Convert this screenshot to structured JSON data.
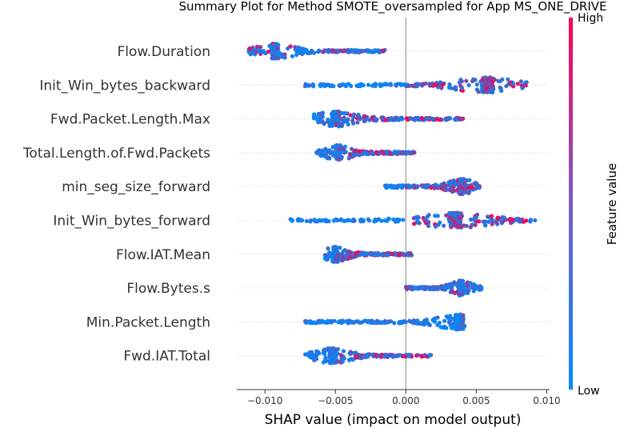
{
  "chart_data": {
    "type": "scatter",
    "title": "Summary Plot for Method SMOTE_oversampled for App MS_ONE_DRIVE",
    "xlabel": "SHAP value (impact on model output)",
    "ylabel": "",
    "xlim": [
      -0.012,
      0.0102
    ],
    "x_ticks": [
      -0.01,
      -0.005,
      0.0,
      0.005,
      0.01
    ],
    "x_tick_labels": [
      "−0.010",
      "−0.005",
      "0.000",
      "0.005",
      "0.010"
    ],
    "grid": "horizontal dotted",
    "zero_line": 0,
    "features": [
      "Flow.Duration",
      "Init_Win_bytes_backward",
      "Fwd.Packet.Length.Max",
      "Total.Length.of.Fwd.Packets",
      "min_seg_size_forward",
      "Init_Win_bytes_forward",
      "Flow.IAT.Mean",
      "Flow.Bytes.s",
      "Min.Packet.Length",
      "Fwd.IAT.Total"
    ],
    "feature_distributions": [
      {
        "feature": "Flow.Duration",
        "range": [
          -0.0112,
          -0.0015
        ],
        "peak": -0.0093,
        "high_value_side": "mixed"
      },
      {
        "feature": "Init_Win_bytes_backward",
        "range": [
          -0.0072,
          0.0088
        ],
        "peak": 0.0058,
        "high_value_side": "positive"
      },
      {
        "feature": "Fwd.Packet.Length.Max",
        "range": [
          -0.0066,
          0.0042
        ],
        "peak": -0.005,
        "high_value_side": "negative"
      },
      {
        "feature": "Total.Length.of.Fwd.Packets",
        "range": [
          -0.0064,
          0.0006
        ],
        "peak": -0.0048,
        "high_value_side": "negative"
      },
      {
        "feature": "min_seg_size_forward",
        "range": [
          -0.0015,
          0.0053
        ],
        "peak": 0.004,
        "high_value_side": "positive"
      },
      {
        "feature": "Init_Win_bytes_forward",
        "range": [
          -0.0082,
          0.0092
        ],
        "peak": 0.0035,
        "high_value_side": "positive"
      },
      {
        "feature": "Flow.IAT.Mean",
        "range": [
          -0.0058,
          0.0004
        ],
        "peak": -0.005,
        "high_value_side": "negative"
      },
      {
        "feature": "Flow.Bytes.s",
        "range": [
          0.0,
          0.0054
        ],
        "peak": 0.0039,
        "high_value_side": "mixed"
      },
      {
        "feature": "Min.Packet.Length",
        "range": [
          -0.0073,
          0.0042
        ],
        "peak": 0.0038,
        "high_value_side": "negative"
      },
      {
        "feature": "Fwd.IAT.Total",
        "range": [
          -0.0072,
          0.0018
        ],
        "peak": -0.0052,
        "high_value_side": "negative"
      }
    ],
    "colorbar": {
      "label": "Feature value",
      "high": "High",
      "low": "Low",
      "high_color": "#ff0052",
      "low_color": "#008bfb"
    },
    "legend_placement": "right"
  }
}
